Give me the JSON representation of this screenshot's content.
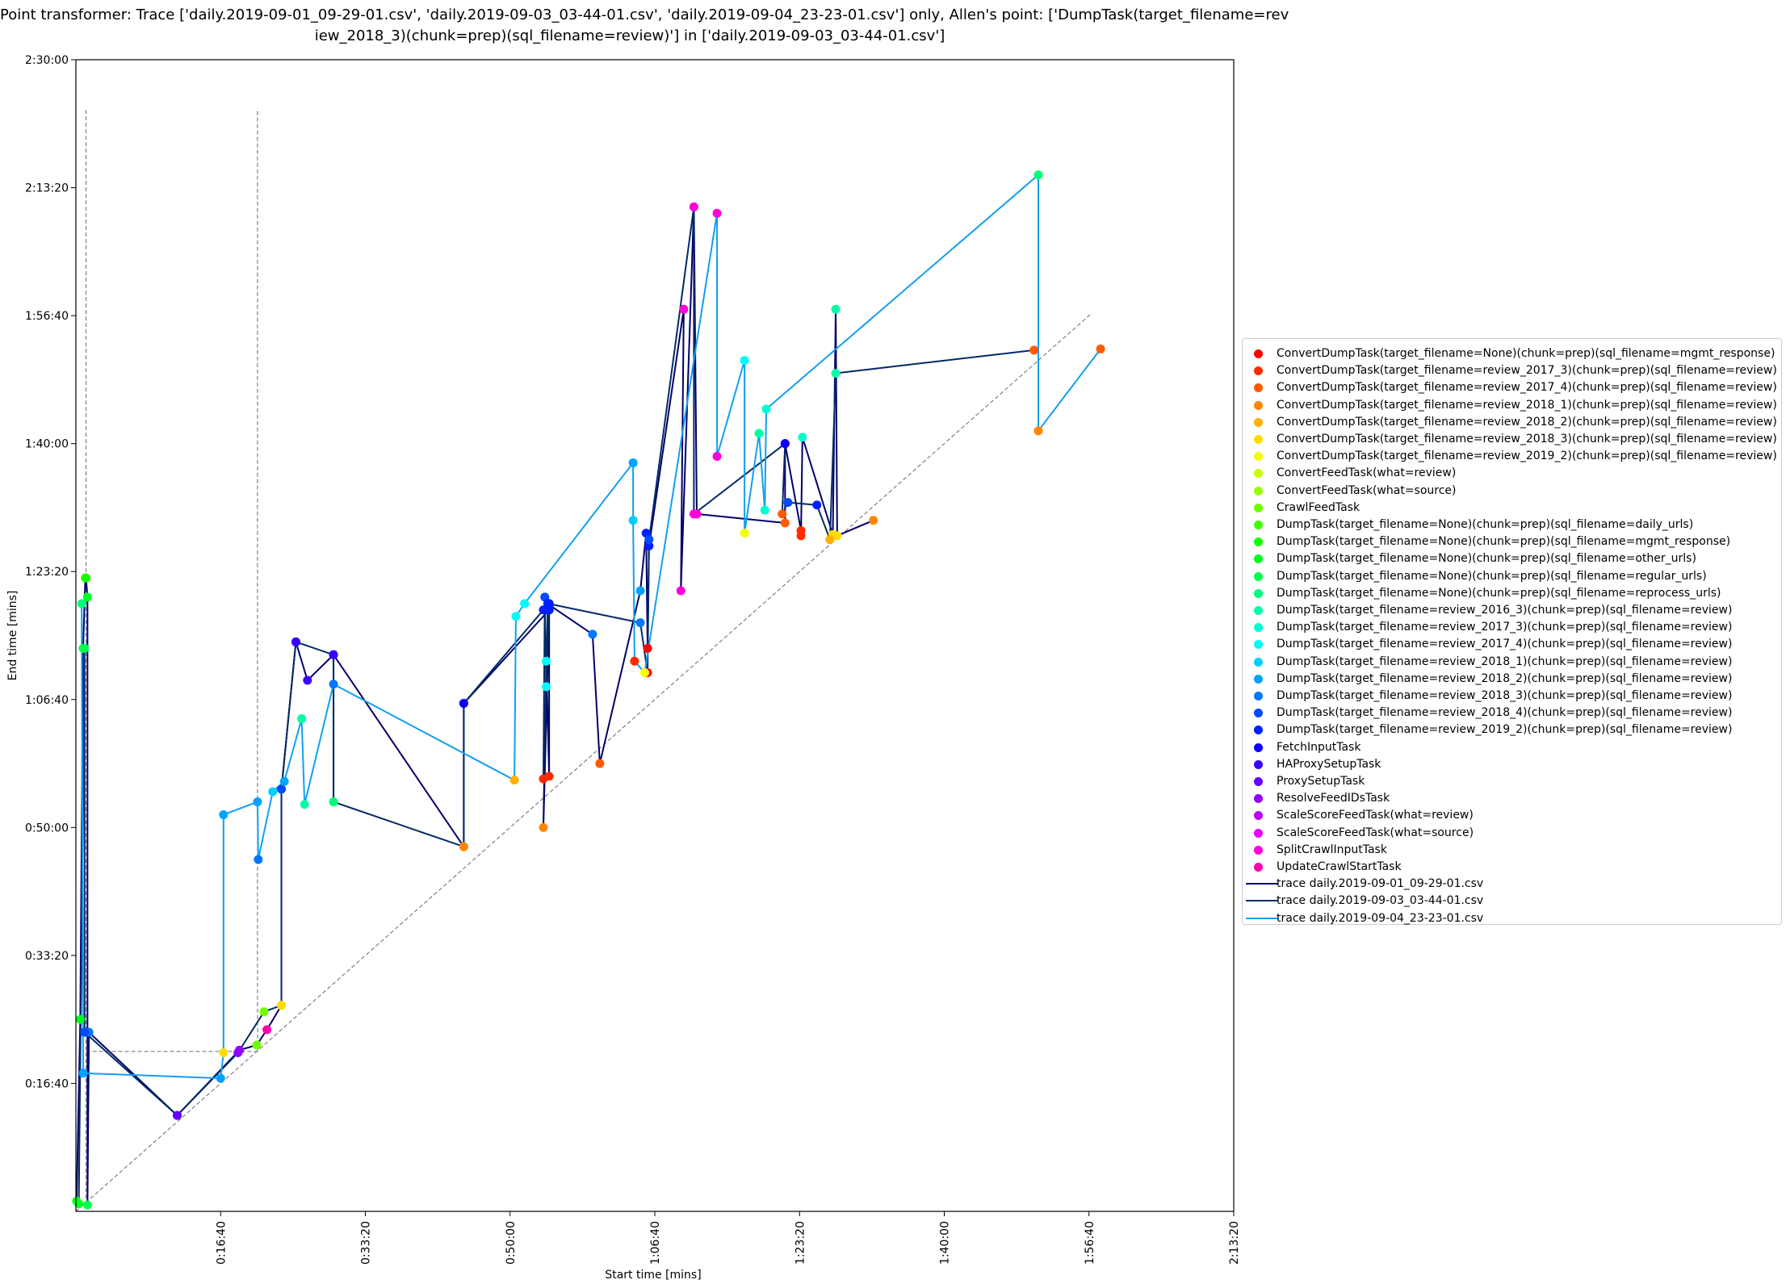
{
  "title_lines": [
    "Point transformer: Trace ['daily.2019-09-01_09-29-01.csv', 'daily.2019-09-03_03-44-01.csv', 'daily.2019-09-04_23-23-01.csv'] only, Allen's point: ['DumpTask(target_filename=rev",
    "iew_2018_3)(chunk=prep)(sql_filename=review)'] in ['daily.2019-09-03_03-44-01.csv']"
  ],
  "chart_data": {
    "type": "scatter",
    "xlabel": "Start time [mins]",
    "ylabel": "End time [mins]",
    "xlim": [
      0,
      8000
    ],
    "ylim": [
      0,
      9000
    ],
    "x_ticks": [
      {
        "value": 1000,
        "label": "0:16:40"
      },
      {
        "value": 2000,
        "label": "0:33:20"
      },
      {
        "value": 3000,
        "label": "0:50:00"
      },
      {
        "value": 4000,
        "label": "1:06:40"
      },
      {
        "value": 5000,
        "label": "1:23:20"
      },
      {
        "value": 6000,
        "label": "1:40:00"
      },
      {
        "value": 7000,
        "label": "1:56:40"
      },
      {
        "value": 8000,
        "label": "2:13:20"
      }
    ],
    "y_ticks": [
      {
        "value": 1000,
        "label": "0:16:40"
      },
      {
        "value": 2000,
        "label": "0:33:20"
      },
      {
        "value": 3000,
        "label": "0:50:00"
      },
      {
        "value": 4000,
        "label": "1:06:40"
      },
      {
        "value": 5000,
        "label": "1:23:20"
      },
      {
        "value": 6000,
        "label": "1:40:00"
      },
      {
        "value": 7000,
        "label": "1:56:40"
      },
      {
        "value": 8000,
        "label": "2:13:20"
      },
      {
        "value": 9000,
        "label": "2:30:00"
      }
    ],
    "grid": false,
    "legend_position": "outside-right",
    "diagonal": {
      "from": [
        0,
        0
      ],
      "to": [
        7020,
        7020
      ],
      "style": "dashed",
      "color": "#808080"
    },
    "reference_lines": [
      {
        "x1": 70,
        "y1": 50,
        "x2": 70,
        "y2": 8620,
        "color": "#808080"
      },
      {
        "x1": 1255,
        "y1": 1250,
        "x2": 1255,
        "y2": 8620,
        "color": "#808080"
      },
      {
        "x1": 70,
        "y1": 1250,
        "x2": 1255,
        "y2": 1250,
        "color": "#808080"
      }
    ],
    "legend": [
      {
        "label": "ConvertDumpTask(target_filename=None)(chunk=prep)(sql_filename=mgmt_response)",
        "color": "#ff0000",
        "kind": "marker"
      },
      {
        "label": "ConvertDumpTask(target_filename=review_2017_3)(chunk=prep)(sql_filename=review)",
        "color": "#ff2b00",
        "kind": "marker"
      },
      {
        "label": "ConvertDumpTask(target_filename=review_2017_4)(chunk=prep)(sql_filename=review)",
        "color": "#ff5a00",
        "kind": "marker"
      },
      {
        "label": "ConvertDumpTask(target_filename=review_2018_1)(chunk=prep)(sql_filename=review)",
        "color": "#ff8600",
        "kind": "marker"
      },
      {
        "label": "ConvertDumpTask(target_filename=review_2018_2)(chunk=prep)(sql_filename=review)",
        "color": "#ffb000",
        "kind": "marker"
      },
      {
        "label": "ConvertDumpTask(target_filename=review_2018_3)(chunk=prep)(sql_filename=review)",
        "color": "#ffdc00",
        "kind": "marker"
      },
      {
        "label": "ConvertDumpTask(target_filename=review_2019_2)(chunk=prep)(sql_filename=review)",
        "color": "#f4ff00",
        "kind": "marker"
      },
      {
        "label": "ConvertFeedTask(what=review)",
        "color": "#c8ff00",
        "kind": "marker"
      },
      {
        "label": "ConvertFeedTask(what=source)",
        "color": "#9aff00",
        "kind": "marker"
      },
      {
        "label": "CrawlFeedTask",
        "color": "#6eff00",
        "kind": "marker"
      },
      {
        "label": "DumpTask(target_filename=None)(chunk=prep)(sql_filename=daily_urls)",
        "color": "#40ff00",
        "kind": "marker"
      },
      {
        "label": "DumpTask(target_filename=None)(chunk=prep)(sql_filename=mgmt_response)",
        "color": "#14ff00",
        "kind": "marker"
      },
      {
        "label": "DumpTask(target_filename=None)(chunk=prep)(sql_filename=other_urls)",
        "color": "#00ff1e",
        "kind": "marker"
      },
      {
        "label": "DumpTask(target_filename=None)(chunk=prep)(sql_filename=regular_urls)",
        "color": "#00ff4a",
        "kind": "marker"
      },
      {
        "label": "DumpTask(target_filename=None)(chunk=prep)(sql_filename=reprocess_urls)",
        "color": "#00ff78",
        "kind": "marker"
      },
      {
        "label": "DumpTask(target_filename=review_2016_3)(chunk=prep)(sql_filename=review)",
        "color": "#00ffa4",
        "kind": "marker"
      },
      {
        "label": "DumpTask(target_filename=review_2017_3)(chunk=prep)(sql_filename=review)",
        "color": "#00ffd0",
        "kind": "marker"
      },
      {
        "label": "DumpTask(target_filename=review_2017_4)(chunk=prep)(sql_filename=review)",
        "color": "#00fbff",
        "kind": "marker"
      },
      {
        "label": "DumpTask(target_filename=review_2018_1)(chunk=prep)(sql_filename=review)",
        "color": "#00cfff",
        "kind": "marker"
      },
      {
        "label": "DumpTask(target_filename=review_2018_2)(chunk=prep)(sql_filename=review)",
        "color": "#00a3ff",
        "kind": "marker"
      },
      {
        "label": "DumpTask(target_filename=review_2018_3)(chunk=prep)(sql_filename=review)",
        "color": "#0077ff",
        "kind": "marker"
      },
      {
        "label": "DumpTask(target_filename=review_2018_4)(chunk=prep)(sql_filename=review)",
        "color": "#004aff",
        "kind": "marker"
      },
      {
        "label": "DumpTask(target_filename=review_2019_2)(chunk=prep)(sql_filename=review)",
        "color": "#001eff",
        "kind": "marker"
      },
      {
        "label": "FetchInputTask",
        "color": "#0d00ff",
        "kind": "marker"
      },
      {
        "label": "HAProxySetupTask",
        "color": "#3a00ff",
        "kind": "marker"
      },
      {
        "label": "ProxySetupTask",
        "color": "#6600ff",
        "kind": "marker"
      },
      {
        "label": "ResolveFeedIDsTask",
        "color": "#9200ff",
        "kind": "marker"
      },
      {
        "label": "ScaleScoreFeedTask(what=review)",
        "color": "#be00ff",
        "kind": "marker"
      },
      {
        "label": "ScaleScoreFeedTask(what=source)",
        "color": "#ea00ff",
        "kind": "marker"
      },
      {
        "label": "SplitCrawlInputTask",
        "color": "#ff00d8",
        "kind": "marker"
      },
      {
        "label": "UpdateCrawlStartTask",
        "color": "#ff00ac",
        "kind": "marker"
      },
      {
        "label": "trace daily.2019-09-01_09-29-01.csv",
        "color": "#00006a",
        "kind": "line"
      },
      {
        "label": "trace daily.2019-09-03_03-44-01.csv",
        "color": "#002a66",
        "kind": "line"
      },
      {
        "label": "trace daily.2019-09-04_23-23-01.csv",
        "color": "#119ff0",
        "kind": "line"
      }
    ],
    "series": [
      {
        "name": "trace daily.2019-09-01_09-29-01.csv",
        "color": "#00006a",
        "points": [
          {
            "x": 5,
            "y": 80,
            "c": 12
          },
          {
            "x": 30,
            "y": 1500,
            "c": 12
          },
          {
            "x": 50,
            "y": 4400,
            "c": 13
          },
          {
            "x": 65,
            "y": 4950,
            "c": 10
          },
          {
            "x": 70,
            "y": 4950,
            "c": 11
          },
          {
            "x": 80,
            "y": 4800,
            "c": 12
          },
          {
            "x": 80,
            "y": 50,
            "c": 13
          },
          {
            "x": 90,
            "y": 1400,
            "c": 20
          },
          {
            "x": 700,
            "y": 750,
            "c": 25
          },
          {
            "x": 1130,
            "y": 1260,
            "c": 26
          },
          {
            "x": 1250,
            "y": 1300,
            "c": 9
          },
          {
            "x": 1320,
            "y": 1420,
            "c": 30
          },
          {
            "x": 1420,
            "y": 1610,
            "c": 5
          },
          {
            "x": 1420,
            "y": 3300,
            "c": 21
          },
          {
            "x": 1520,
            "y": 4450,
            "c": 24
          },
          {
            "x": 1600,
            "y": 4150,
            "c": 24
          },
          {
            "x": 1780,
            "y": 4350,
            "c": 24
          },
          {
            "x": 1780,
            "y": 3200,
            "c": 14
          },
          {
            "x": 1780,
            "y": 4350,
            "c": 24
          },
          {
            "x": 2680,
            "y": 2850,
            "c": 3
          },
          {
            "x": 2680,
            "y": 3970,
            "c": 23
          },
          {
            "x": 3270,
            "y": 4700,
            "c": 22
          },
          {
            "x": 3270,
            "y": 4700,
            "c": 22
          },
          {
            "x": 3230,
            "y": 3000,
            "c": 3
          },
          {
            "x": 3250,
            "y": 4300,
            "c": 17
          },
          {
            "x": 3270,
            "y": 3400,
            "c": 1
          },
          {
            "x": 3270,
            "y": 4740,
            "c": 22
          },
          {
            "x": 3570,
            "y": 4510,
            "c": 20
          },
          {
            "x": 3620,
            "y": 3500,
            "c": 2
          },
          {
            "x": 3900,
            "y": 4850,
            "c": 19
          },
          {
            "x": 3940,
            "y": 5300,
            "c": 22
          },
          {
            "x": 3950,
            "y": 4400,
            "c": 0
          },
          {
            "x": 3960,
            "y": 5200,
            "c": 22
          },
          {
            "x": 4200,
            "y": 7050,
            "c": 29
          },
          {
            "x": 4180,
            "y": 4850,
            "c": 29
          },
          {
            "x": 4270,
            "y": 7850,
            "c": 29
          },
          {
            "x": 4290,
            "y": 5450,
            "c": 29
          },
          {
            "x": 4900,
            "y": 5380,
            "c": 2
          },
          {
            "x": 4900,
            "y": 6000,
            "c": 23
          },
          {
            "x": 5010,
            "y": 5320,
            "c": 1
          },
          {
            "x": 5010,
            "y": 5280,
            "c": 1
          },
          {
            "x": 5020,
            "y": 6050,
            "c": 16
          },
          {
            "x": 5230,
            "y": 5290,
            "c": 5
          },
          {
            "x": 5250,
            "y": 7050,
            "c": 15
          },
          {
            "x": 5260,
            "y": 5280,
            "c": 5
          },
          {
            "x": 5510,
            "y": 5400,
            "c": 3
          }
        ]
      },
      {
        "name": "trace daily.2019-09-03_03-44-01.csv",
        "color": "#002a66",
        "points": [
          {
            "x": 20,
            "y": 60,
            "c": 12
          },
          {
            "x": 60,
            "y": 4400,
            "c": 13
          },
          {
            "x": 60,
            "y": 1400,
            "c": 21
          },
          {
            "x": 700,
            "y": 750,
            "c": 25
          },
          {
            "x": 1120,
            "y": 1240,
            "c": 26
          },
          {
            "x": 1300,
            "y": 1560,
            "c": 9
          },
          {
            "x": 1420,
            "y": 1610,
            "c": 5
          },
          {
            "x": 1420,
            "y": 3300,
            "c": 21
          },
          {
            "x": 1520,
            "y": 4450,
            "c": 24
          },
          {
            "x": 1780,
            "y": 4350,
            "c": 24
          },
          {
            "x": 1780,
            "y": 3200,
            "c": 14
          },
          {
            "x": 2680,
            "y": 2850,
            "c": 3
          },
          {
            "x": 2680,
            "y": 3970,
            "c": 23
          },
          {
            "x": 3230,
            "y": 4700,
            "c": 22
          },
          {
            "x": 3270,
            "y": 4750,
            "c": 22
          },
          {
            "x": 3230,
            "y": 3380,
            "c": 1
          },
          {
            "x": 3240,
            "y": 4800,
            "c": 21
          },
          {
            "x": 3250,
            "y": 4100,
            "c": 17
          },
          {
            "x": 3260,
            "y": 4750,
            "c": 22
          },
          {
            "x": 3900,
            "y": 4600,
            "c": 20
          },
          {
            "x": 3950,
            "y": 4210,
            "c": 0
          },
          {
            "x": 3960,
            "y": 5250,
            "c": 21
          },
          {
            "x": 4270,
            "y": 7850,
            "c": 29
          },
          {
            "x": 4270,
            "y": 5450,
            "c": 29
          },
          {
            "x": 4900,
            "y": 6000,
            "c": 23
          },
          {
            "x": 4880,
            "y": 5450,
            "c": 2
          },
          {
            "x": 4920,
            "y": 5540,
            "c": 21
          },
          {
            "x": 5120,
            "y": 5520,
            "c": 22
          },
          {
            "x": 5210,
            "y": 5250,
            "c": 4
          },
          {
            "x": 5250,
            "y": 6550,
            "c": 15
          },
          {
            "x": 6620,
            "y": 6730,
            "c": 2
          }
        ]
      },
      {
        "name": "trace daily.2019-09-04_23-23-01.csv",
        "color": "#119ff0",
        "points": [
          {
            "x": 40,
            "y": 4750,
            "c": 14
          },
          {
            "x": 50,
            "y": 1080,
            "c": 19
          },
          {
            "x": 1000,
            "y": 1040,
            "c": 19
          },
          {
            "x": 1020,
            "y": 1240,
            "c": 5
          },
          {
            "x": 1020,
            "y": 3100,
            "c": 19
          },
          {
            "x": 1255,
            "y": 3200,
            "c": 19
          },
          {
            "x": 1260,
            "y": 2750,
            "c": 20
          },
          {
            "x": 1360,
            "y": 3280,
            "c": 18
          },
          {
            "x": 1440,
            "y": 3360,
            "c": 19
          },
          {
            "x": 1560,
            "y": 3850,
            "c": 15
          },
          {
            "x": 1580,
            "y": 3180,
            "c": 15
          },
          {
            "x": 1780,
            "y": 4120,
            "c": 20
          },
          {
            "x": 3030,
            "y": 3370,
            "c": 4
          },
          {
            "x": 3040,
            "y": 4650,
            "c": 17
          },
          {
            "x": 3100,
            "y": 4750,
            "c": 17
          },
          {
            "x": 3850,
            "y": 5850,
            "c": 19
          },
          {
            "x": 3850,
            "y": 5400,
            "c": 18
          },
          {
            "x": 3860,
            "y": 4300,
            "c": 1
          },
          {
            "x": 3930,
            "y": 4210,
            "c": 6
          },
          {
            "x": 4430,
            "y": 7800,
            "c": 29
          },
          {
            "x": 4430,
            "y": 5900,
            "c": 29
          },
          {
            "x": 4620,
            "y": 6650,
            "c": 17
          },
          {
            "x": 4620,
            "y": 5300,
            "c": 6
          },
          {
            "x": 4720,
            "y": 6080,
            "c": 15
          },
          {
            "x": 4760,
            "y": 5480,
            "c": 16
          },
          {
            "x": 4770,
            "y": 6270,
            "c": 16
          },
          {
            "x": 6650,
            "y": 8100,
            "c": 14
          },
          {
            "x": 6650,
            "y": 6100,
            "c": 3
          },
          {
            "x": 7080,
            "y": 6740,
            "c": 2
          }
        ]
      }
    ]
  }
}
